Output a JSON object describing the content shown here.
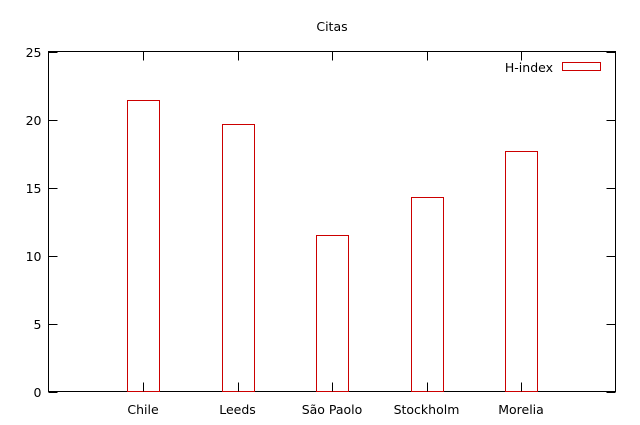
{
  "chart_data": {
    "type": "bar",
    "title": "Citas",
    "xlabel": "",
    "ylabel": "",
    "categories": [
      "Chile",
      "Leeds",
      "São Paolo",
      "Stockholm",
      "Morelia"
    ],
    "series": [
      {
        "name": "H-index",
        "values": [
          21.4,
          19.7,
          11.5,
          14.3,
          17.7
        ]
      }
    ],
    "ylim": [
      0,
      25
    ],
    "yticks": [
      0,
      5,
      10,
      15,
      20,
      25
    ],
    "grid": false,
    "legend_position": "top-right",
    "colors": {
      "bar_stroke": "#cc0000",
      "axis": "#000000"
    }
  }
}
